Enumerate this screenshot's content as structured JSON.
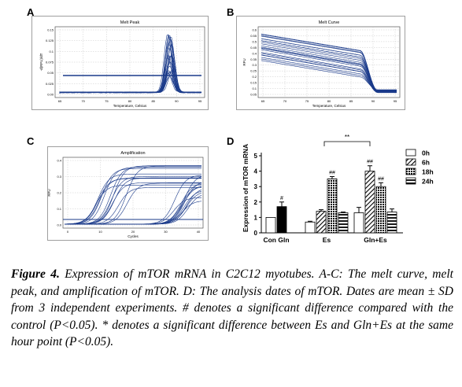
{
  "panels": {
    "A": {
      "letter": "A",
      "title": "Melt Peak",
      "xlabel": "Temperature, Celsius",
      "ylabel": "-d(RFU)/dT",
      "yticks": [
        "0.15",
        "0.125",
        "0.1",
        "0.075",
        "0.05",
        "0.025",
        "0.00"
      ],
      "xticks": [
        "65",
        "70",
        "75",
        "80",
        "85",
        "90",
        "95"
      ]
    },
    "B": {
      "letter": "B",
      "title": "Melt Curve",
      "xlabel": "Temperature, Celsius",
      "ylabel": "RFU",
      "yticks": [
        "0.6",
        "0.55",
        "0.5",
        "0.45",
        "0.4",
        "0.35",
        "0.3",
        "0.25",
        "0.2",
        "0.15",
        "0.1",
        "0.05"
      ],
      "xticks": [
        "65",
        "70",
        "75",
        "80",
        "85",
        "90",
        "95"
      ]
    },
    "C": {
      "letter": "C",
      "title": "Amplification",
      "xlabel": "Cycles",
      "ylabel": "RFU",
      "yticks": [
        "0.4",
        "0.3",
        "0.2",
        "0.1",
        "0.0"
      ],
      "xticks": [
        "0",
        "10",
        "20",
        "30",
        "40"
      ]
    },
    "D": {
      "letter": "D"
    }
  },
  "chart_data": {
    "type": "bar",
    "ylabel": "Expression of mTOR mRNA",
    "ylim": [
      0,
      5
    ],
    "yticks": [
      "0",
      "1",
      "2",
      "3",
      "4",
      "5"
    ],
    "groups": [
      {
        "label": "Con Gln",
        "bars": [
          {
            "series": "0h",
            "value": 1.0,
            "err": 0.0,
            "mark": ""
          },
          {
            "series": "24h_solid",
            "value": 1.7,
            "err": 0.3,
            "mark": "#"
          }
        ]
      },
      {
        "label": "Es",
        "bars": [
          {
            "series": "0h",
            "value": 0.7,
            "err": 0.05,
            "mark": ""
          },
          {
            "series": "6h",
            "value": 1.4,
            "err": 0.1,
            "mark": ""
          },
          {
            "series": "18h",
            "value": 3.5,
            "err": 0.15,
            "mark": "##"
          },
          {
            "series": "24h",
            "value": 1.3,
            "err": 0.05,
            "mark": ""
          }
        ]
      },
      {
        "label": "Gln+Es",
        "bars": [
          {
            "series": "0h",
            "value": 1.3,
            "err": 0.35,
            "mark": ""
          },
          {
            "series": "6h",
            "value": 4.0,
            "err": 0.35,
            "mark": "##"
          },
          {
            "series": "18h",
            "value": 3.0,
            "err": 0.25,
            "mark": "##"
          },
          {
            "series": "24h",
            "value": 1.35,
            "err": 0.2,
            "mark": ""
          }
        ]
      }
    ],
    "legend": [
      "0h",
      "6h",
      "18h",
      "24h"
    ],
    "bracket_label": "**"
  },
  "caption": {
    "label": "Figure 4.",
    "text": " Expression of mTOR mRNA in C2C12 myotubes. A-C: The melt curve, melt peak, and amplification of mTOR. D: The analysis dates of mTOR. Dates are mean ± SD from 3 independent experiments. # denotes a significant difference compared with the control (P<0.05). * denotes a significant difference between Es and Gln+Es at the same hour point (P<0.05)."
  }
}
